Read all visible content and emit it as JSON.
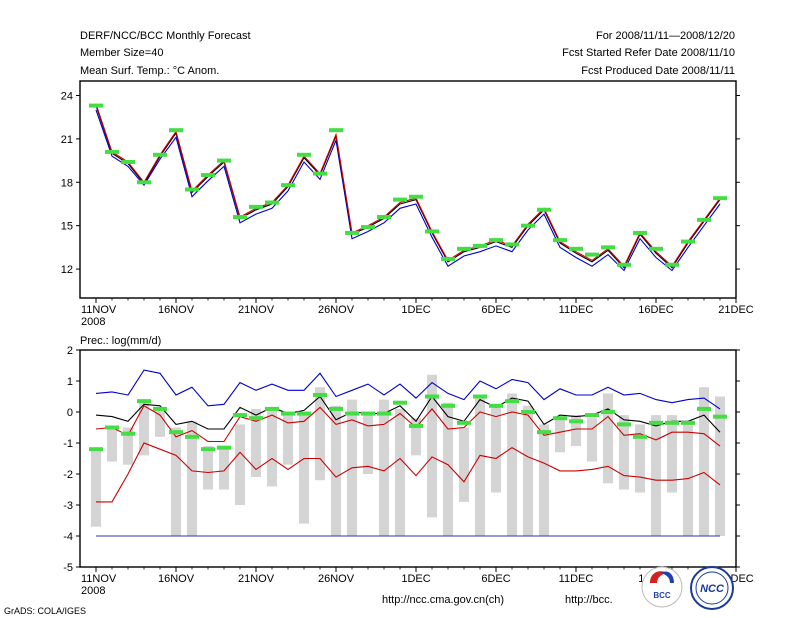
{
  "header": {
    "left": [
      "DERF/NCC/BCC Monthly Forecast",
      "Member Size=40",
      "Mean Surf. Temp.: °C Anom."
    ],
    "right": [
      "For 2008/11/11—2008/12/20",
      "Fcst Started Refer Date 2008/11/10",
      "Fcst Produced Date 2008/11/11"
    ]
  },
  "footer": {
    "credit": "GrADS: COLA/IGES",
    "url_ncc": "http://ncc.cma.gov.cn(ch)",
    "url_bcc": "http://bcc.",
    "logo_left": "BCC",
    "logo_right": "NCC"
  },
  "chart_data": [
    {
      "type": "line",
      "title": "Mean Surf. Temp.: °C Anom.",
      "xlabel": "",
      "ylabel": "",
      "x": [
        "11NOV",
        "12NOV",
        "13NOV",
        "14NOV",
        "15NOV",
        "16NOV",
        "17NOV",
        "18NOV",
        "19NOV",
        "20NOV",
        "21NOV",
        "22NOV",
        "23NOV",
        "24NOV",
        "25NOV",
        "26NOV",
        "27NOV",
        "28NOV",
        "29NOV",
        "30NOV",
        "1DEC",
        "2DEC",
        "3DEC",
        "4DEC",
        "5DEC",
        "6DEC",
        "7DEC",
        "8DEC",
        "9DEC",
        "10DEC",
        "11DEC",
        "12DEC",
        "13DEC",
        "14DEC",
        "15DEC",
        "16DEC",
        "17DEC",
        "18DEC",
        "19DEC",
        "20DEC"
      ],
      "xticks": [
        "11NOV",
        "16NOV",
        "21NOV",
        "26NOV",
        "1DEC",
        "6DEC",
        "11DEC",
        "16DEC",
        "21DEC"
      ],
      "xtick_positions": [
        0,
        5,
        10,
        15,
        20,
        25,
        30,
        35,
        40
      ],
      "year_label": "2008",
      "yticks": [
        12,
        15,
        18,
        21,
        24
      ],
      "ylim": [
        10,
        25
      ],
      "xlim": [
        -1,
        40
      ],
      "series": [
        {
          "name": "upper",
          "color": "#0000cc",
          "values": [
            23.0,
            19.8,
            19.1,
            17.8,
            19.6,
            21.1,
            17.0,
            18.1,
            19.1,
            15.2,
            15.8,
            16.2,
            17.4,
            19.4,
            18.2,
            20.9,
            14.1,
            14.6,
            15.2,
            16.2,
            16.5,
            14.2,
            12.2,
            12.9,
            13.2,
            13.6,
            13.2,
            14.7,
            15.8,
            13.5,
            12.8,
            12.2,
            13.0,
            11.9,
            14.1,
            12.8,
            11.9,
            13.5,
            15.0,
            16.5
          ]
        },
        {
          "name": "ensemble-mean",
          "color": "#000000",
          "values": [
            23.3,
            20.0,
            19.3,
            17.9,
            19.8,
            21.4,
            17.3,
            18.4,
            19.4,
            15.5,
            16.1,
            16.5,
            17.7,
            19.7,
            18.5,
            21.2,
            14.4,
            14.9,
            15.5,
            16.5,
            16.8,
            14.5,
            12.5,
            13.2,
            13.5,
            13.9,
            13.5,
            15.0,
            16.1,
            13.8,
            13.1,
            12.5,
            13.3,
            12.1,
            14.4,
            13.1,
            12.1,
            13.8,
            15.3,
            16.8
          ]
        },
        {
          "name": "lower",
          "color": "#cc0000",
          "values": [
            23.4,
            20.1,
            19.4,
            18.0,
            19.9,
            21.5,
            17.4,
            18.5,
            19.5,
            15.6,
            16.2,
            16.6,
            17.8,
            19.8,
            18.6,
            21.3,
            14.5,
            15.0,
            15.6,
            16.6,
            16.9,
            14.6,
            12.6,
            13.3,
            13.6,
            14.0,
            13.6,
            15.1,
            16.2,
            13.9,
            13.2,
            12.6,
            13.4,
            12.2,
            14.5,
            13.2,
            12.2,
            13.9,
            15.4,
            16.9
          ]
        }
      ],
      "markers": {
        "color": "#44dd44",
        "values": [
          23.3,
          20.1,
          19.4,
          18.0,
          19.9,
          21.6,
          17.5,
          18.5,
          19.5,
          15.6,
          16.3,
          16.6,
          17.8,
          19.9,
          18.6,
          21.6,
          14.5,
          14.9,
          15.6,
          16.8,
          17.0,
          14.6,
          12.7,
          13.4,
          13.6,
          14.0,
          13.7,
          15.0,
          16.1,
          14.0,
          13.4,
          13.0,
          13.5,
          12.3,
          14.5,
          13.4,
          12.3,
          13.9,
          15.4,
          16.9
        ]
      }
    },
    {
      "type": "line",
      "title": "Prec.: log(mm/d)",
      "xlabel": "",
      "ylabel": "",
      "x": [
        "11NOV",
        "12NOV",
        "13NOV",
        "14NOV",
        "15NOV",
        "16NOV",
        "17NOV",
        "18NOV",
        "19NOV",
        "20NOV",
        "21NOV",
        "22NOV",
        "23NOV",
        "24NOV",
        "25NOV",
        "26NOV",
        "27NOV",
        "28NOV",
        "29NOV",
        "30NOV",
        "1DEC",
        "2DEC",
        "3DEC",
        "4DEC",
        "5DEC",
        "6DEC",
        "7DEC",
        "8DEC",
        "9DEC",
        "10DEC",
        "11DEC",
        "12DEC",
        "13DEC",
        "14DEC",
        "15DEC",
        "16DEC",
        "17DEC",
        "18DEC",
        "19DEC",
        "20DEC"
      ],
      "xticks": [
        "11NOV",
        "16NOV",
        "21NOV",
        "26NOV",
        "1DEC",
        "6DEC",
        "11DEC",
        "16DEC",
        "21DEC"
      ],
      "xtick_positions": [
        0,
        5,
        10,
        15,
        20,
        25,
        30,
        35,
        40
      ],
      "year_label": "2008",
      "yticks": [
        -5,
        -4,
        -3,
        -2,
        -1,
        0,
        1,
        2
      ],
      "ylim": [
        -5,
        2
      ],
      "xlim": [
        -1,
        40
      ],
      "baseline": {
        "value": -4,
        "color": "#3333aa"
      },
      "boxes": {
        "color": "#d4d4d4",
        "low": [
          -3.7,
          -1.6,
          -1.7,
          -1.4,
          -0.8,
          -4.0,
          -4.0,
          -2.5,
          -2.5,
          -3.0,
          -2.1,
          -2.4,
          -1.7,
          -3.6,
          -2.2,
          -4.0,
          -4.0,
          -2.0,
          -4.0,
          -4.0,
          -1.4,
          -3.4,
          -4.0,
          -2.9,
          -4.0,
          -2.6,
          -4.0,
          -4.0,
          -4.0,
          -1.3,
          -1.1,
          -1.6,
          -2.3,
          -2.5,
          -2.6,
          -4.0,
          -2.6,
          -4.0,
          -4.0,
          -4.0
        ],
        "high": [
          -1.2,
          -0.5,
          -0.5,
          0.4,
          0.1,
          -0.5,
          -0.3,
          -1.1,
          -1.1,
          -0.4,
          0.1,
          0.1,
          -0.1,
          0.0,
          0.8,
          0.2,
          0.4,
          -0.1,
          0.4,
          0.1,
          -0.2,
          1.2,
          0.3,
          -0.5,
          0.5,
          0.2,
          0.6,
          0.2,
          -0.4,
          -0.2,
          -0.1,
          -0.2,
          0.6,
          -0.1,
          -0.4,
          -0.1,
          -0.1,
          -0.3,
          0.8,
          0.5
        ]
      },
      "series": [
        {
          "name": "upper",
          "color": "#0000cc",
          "values": [
            0.6,
            0.65,
            0.55,
            1.35,
            1.25,
            0.55,
            0.8,
            0.2,
            0.25,
            0.95,
            0.7,
            0.9,
            0.7,
            0.7,
            1.25,
            0.5,
            0.7,
            0.9,
            0.55,
            0.9,
            0.45,
            0.95,
            0.6,
            0.4,
            1.0,
            0.75,
            1.05,
            0.95,
            0.4,
            0.75,
            0.55,
            0.55,
            0.8,
            0.55,
            0.6,
            0.4,
            0.3,
            0.4,
            0.45,
            0.1
          ]
        },
        {
          "name": "mean",
          "color": "#000000",
          "values": [
            -0.1,
            -0.15,
            -0.3,
            0.25,
            0.2,
            -0.4,
            -0.3,
            -0.55,
            -0.55,
            0.15,
            -0.1,
            0.15,
            -0.05,
            0.05,
            0.5,
            -0.25,
            0.0,
            -0.05,
            -0.05,
            0.2,
            -0.3,
            0.5,
            -0.15,
            -0.3,
            0.4,
            0.15,
            0.45,
            0.35,
            -0.4,
            -0.1,
            -0.15,
            -0.1,
            0.1,
            -0.25,
            -0.3,
            -0.45,
            -0.3,
            -0.3,
            -0.1,
            -0.65
          ]
        },
        {
          "name": "lower-1",
          "color": "#cc0000",
          "values": [
            -0.55,
            -0.5,
            -0.75,
            0.2,
            -0.1,
            -0.8,
            -0.6,
            -0.95,
            -0.95,
            -0.15,
            -0.3,
            -0.1,
            -0.35,
            -0.3,
            0.15,
            -0.4,
            -0.25,
            -0.45,
            -0.4,
            -0.05,
            -0.5,
            0.1,
            -0.55,
            -0.5,
            0.0,
            -0.15,
            0.0,
            -0.1,
            -0.75,
            -0.65,
            -0.55,
            -0.55,
            -0.15,
            -0.75,
            -0.7,
            -0.9,
            -0.65,
            -0.65,
            -0.7,
            -1.1
          ]
        },
        {
          "name": "lower-2",
          "color": "#cc0000",
          "values": [
            -2.9,
            -2.9,
            -2.0,
            -1.0,
            -1.2,
            -1.4,
            -1.9,
            -1.95,
            -1.9,
            -1.3,
            -1.85,
            -1.5,
            -1.85,
            -1.5,
            -1.5,
            -2.1,
            -1.8,
            -1.75,
            -1.9,
            -1.5,
            -2.05,
            -1.45,
            -1.7,
            -2.25,
            -1.4,
            -1.5,
            -1.15,
            -1.45,
            -1.65,
            -1.9,
            -1.9,
            -1.85,
            -1.75,
            -2.05,
            -2.1,
            -2.2,
            -2.2,
            -2.15,
            -1.95,
            -2.35
          ]
        }
      ],
      "markers": {
        "color": "#44dd44",
        "values": [
          -1.2,
          -0.5,
          -0.7,
          0.35,
          0.1,
          -0.65,
          -0.8,
          -1.2,
          -1.15,
          -0.1,
          -0.2,
          0.1,
          -0.05,
          -0.05,
          0.55,
          0.1,
          -0.05,
          -0.05,
          -0.05,
          0.3,
          -0.45,
          0.5,
          0.2,
          -0.35,
          0.5,
          0.2,
          0.35,
          0.0,
          -0.65,
          -0.2,
          -0.3,
          -0.1,
          0.0,
          -0.4,
          -0.8,
          -0.35,
          -0.35,
          -0.35,
          0.1,
          -0.15
        ]
      }
    }
  ]
}
